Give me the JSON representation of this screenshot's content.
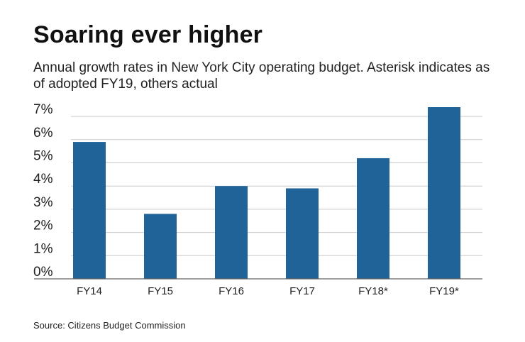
{
  "title": "Soaring ever higher",
  "subtitle": "Annual growth rates in New York City operating budget. Asterisk indicates as of adopted FY19, others actual",
  "source": "Source: Citizens Budget Commission",
  "colors": {
    "bar": "#1f6399",
    "grid": "#c9c9c9",
    "axis": "#666666"
  },
  "chart_data": {
    "type": "bar",
    "categories": [
      "FY14",
      "FY15",
      "FY16",
      "FY17",
      "FY18*",
      "FY19*"
    ],
    "values": [
      5.9,
      2.8,
      4.0,
      3.9,
      5.2,
      7.4
    ],
    "y_ticks": [
      "0%",
      "1%",
      "2%",
      "3%",
      "4%",
      "5%",
      "6%",
      "7%"
    ],
    "ylim": [
      0,
      7.4
    ],
    "grid": true
  }
}
